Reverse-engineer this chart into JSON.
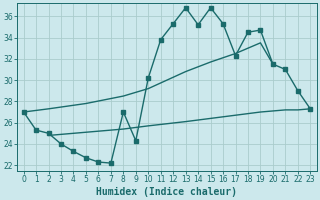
{
  "bg_color": "#cce8ec",
  "grid_color": "#aacccc",
  "line_color": "#1a6b6b",
  "xlabel": "Humidex (Indice chaleur)",
  "xlim": [
    -0.5,
    23.5
  ],
  "ylim": [
    21.5,
    37.2
  ],
  "yticks": [
    22,
    24,
    26,
    28,
    30,
    32,
    34,
    36
  ],
  "xticks": [
    0,
    1,
    2,
    3,
    4,
    5,
    6,
    7,
    8,
    9,
    10,
    11,
    12,
    13,
    14,
    15,
    16,
    17,
    18,
    19,
    20,
    21,
    22,
    23
  ],
  "line1_x": [
    0,
    1,
    2,
    3,
    4,
    5,
    6,
    7,
    8,
    9,
    10,
    11,
    12,
    13,
    14,
    15,
    16,
    17,
    18,
    19,
    20,
    21,
    22,
    23
  ],
  "line1_y": [
    27.0,
    25.3,
    25.0,
    24.0,
    23.3,
    22.7,
    22.3,
    22.2,
    27.0,
    24.3,
    30.2,
    33.8,
    35.3,
    36.8,
    35.2,
    36.8,
    35.3,
    32.3,
    34.5,
    34.7,
    31.5,
    31.0,
    29.0,
    27.3
  ],
  "line2_x": [
    0,
    2,
    5,
    8,
    10,
    13,
    15,
    17,
    19,
    20
  ],
  "line2_y": [
    27.0,
    27.3,
    27.8,
    28.5,
    29.2,
    30.8,
    31.7,
    32.5,
    33.5,
    31.5
  ],
  "line3_x": [
    2,
    5,
    8,
    10,
    13,
    15,
    17,
    19,
    20,
    21,
    22,
    23
  ],
  "line3_y": [
    24.8,
    25.1,
    25.4,
    25.7,
    26.1,
    26.4,
    26.7,
    27.0,
    27.1,
    27.2,
    27.2,
    27.3
  ],
  "marker_size": 2.5,
  "linewidth": 1.0,
  "title_fontsize": 7,
  "xlabel_fontsize": 7,
  "tick_fontsize": 5.5
}
